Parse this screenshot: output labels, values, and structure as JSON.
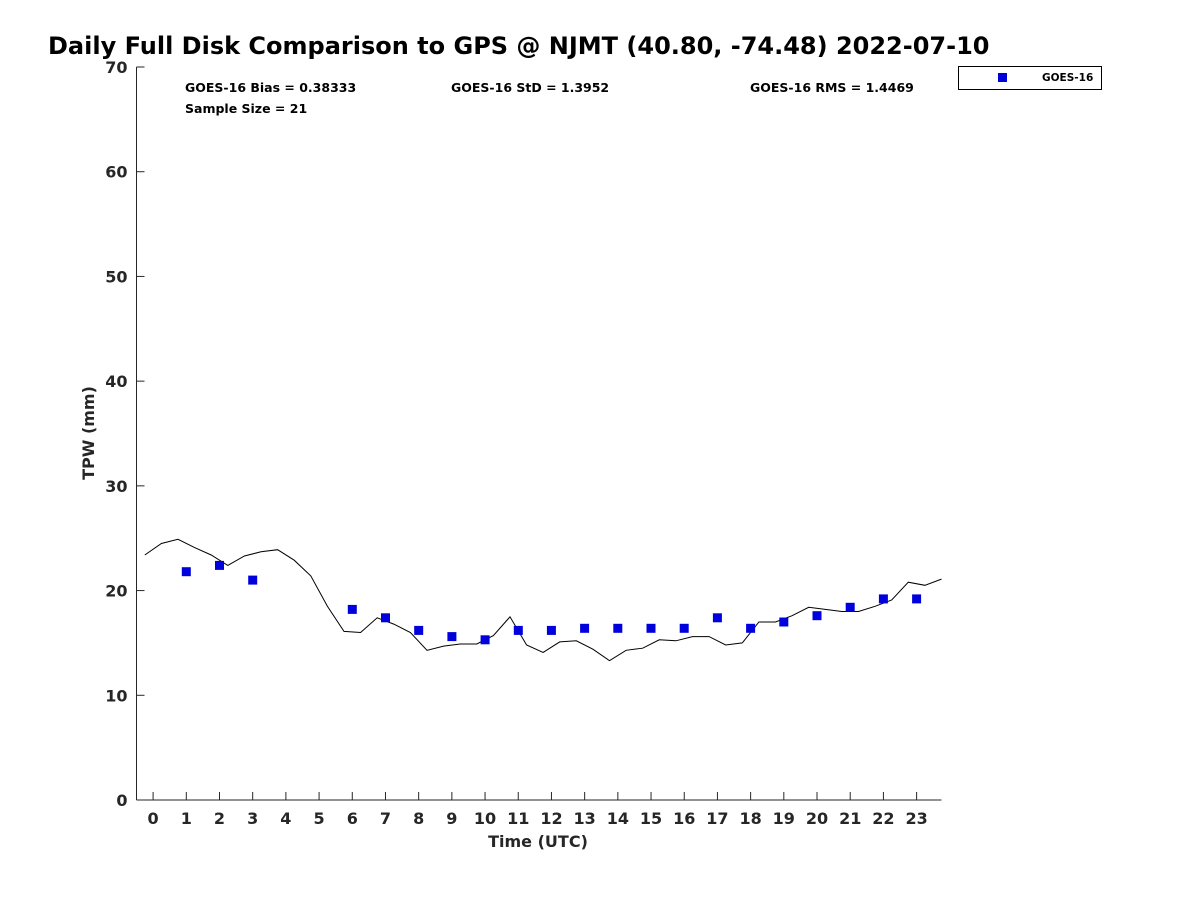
{
  "chart_data": {
    "type": "scatter",
    "title": "Daily Full Disk Comparison to GPS @ NJMT (40.80, -74.48) 2022-07-10",
    "xlabel": "Time (UTC)",
    "ylabel": "TPW (mm)",
    "xlim": [
      -0.5,
      23.75
    ],
    "ylim": [
      0,
      70
    ],
    "xticks": [
      0,
      1,
      2,
      3,
      4,
      5,
      6,
      7,
      8,
      9,
      10,
      11,
      12,
      13,
      14,
      15,
      16,
      17,
      18,
      19,
      20,
      21,
      22,
      23
    ],
    "yticks": [
      0,
      10,
      20,
      30,
      40,
      50,
      60,
      70
    ],
    "grid": false,
    "legend_position": "top-right",
    "stats": {
      "bias": "GOES-16 Bias = 0.38333",
      "std": "GOES-16 StD = 1.3952",
      "rms": "GOES-16 RMS = 1.4469",
      "sample": "Sample Size = 21"
    },
    "series": [
      {
        "name": "GOES-16",
        "kind": "scatter",
        "color": "#0000dd",
        "marker": "square",
        "x": [
          1,
          2,
          3,
          6,
          7,
          8,
          9,
          10,
          11,
          12,
          13,
          14,
          15,
          16,
          17,
          18,
          19,
          20,
          21,
          22,
          23
        ],
        "y": [
          21.8,
          22.4,
          21.0,
          18.2,
          17.4,
          16.2,
          15.6,
          15.3,
          16.2,
          16.2,
          16.4,
          16.4,
          16.4,
          16.4,
          17.4,
          16.4,
          17.0,
          17.6,
          18.4,
          19.2,
          19.2
        ]
      },
      {
        "kind": "line",
        "color": "#000000",
        "x": [
          -0.25,
          0.25,
          0.75,
          1.25,
          1.75,
          2.25,
          2.75,
          3.25,
          3.75,
          4.25,
          4.75,
          5.25,
          5.75,
          6.25,
          6.75,
          7.25,
          7.75,
          8.25,
          8.75,
          9.25,
          9.75,
          10.25,
          10.75,
          11.25,
          11.75,
          12.25,
          12.75,
          13.25,
          13.75,
          14.25,
          14.75,
          15.25,
          15.75,
          16.25,
          16.75,
          17.25,
          17.75,
          18.25,
          18.75,
          19.25,
          19.75,
          20.25,
          20.75,
          21.25,
          21.75,
          22.25,
          22.75,
          23.25,
          23.75
        ],
        "y": [
          23.4,
          24.5,
          24.9,
          24.1,
          23.4,
          22.4,
          23.3,
          23.7,
          23.9,
          22.9,
          21.4,
          18.5,
          16.1,
          16.0,
          17.4,
          16.8,
          16.0,
          14.3,
          14.7,
          14.9,
          14.9,
          15.7,
          17.5,
          14.8,
          14.1,
          15.1,
          15.2,
          14.4,
          13.3,
          14.3,
          14.5,
          15.3,
          15.2,
          15.6,
          15.6,
          14.8,
          15.0,
          17.0,
          17.0,
          17.6,
          18.4,
          18.2,
          18.0,
          18.0,
          18.5,
          19.1,
          20.8,
          20.5,
          21.1
        ]
      }
    ]
  }
}
